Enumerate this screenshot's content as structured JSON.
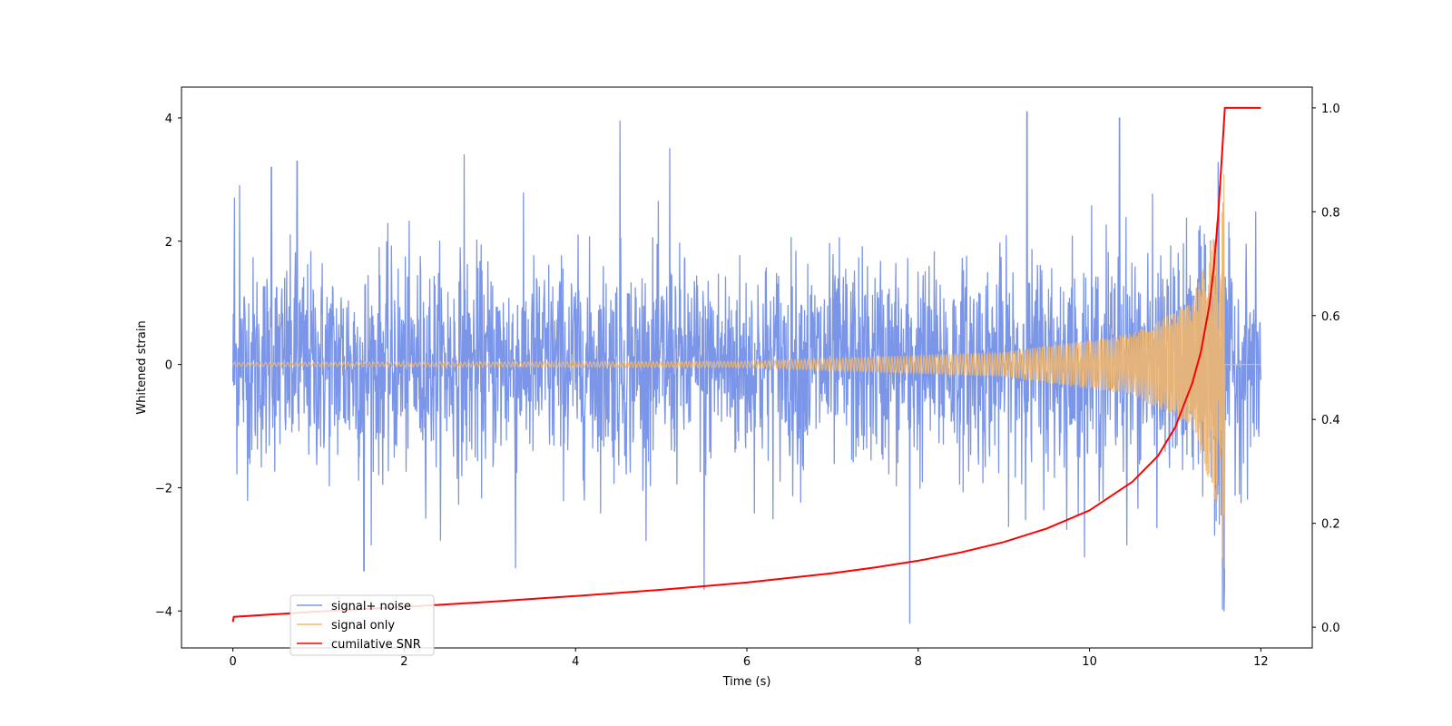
{
  "chart_data": {
    "type": "line",
    "xlabel": "Time (s)",
    "ylabel": "Whitened strain",
    "xlim": [
      -0.6,
      12.6
    ],
    "ylim": [
      -4.6,
      4.5
    ],
    "y2lim": [
      -0.04,
      1.04
    ],
    "xticks": [
      0,
      2,
      4,
      6,
      8,
      10,
      12
    ],
    "yticks": [
      -4,
      -2,
      0,
      2,
      4
    ],
    "y2ticks": [
      0.0,
      0.2,
      0.4,
      0.6,
      0.8,
      1.0
    ],
    "xtick_labels": [
      "0",
      "2",
      "4",
      "6",
      "8",
      "10",
      "12"
    ],
    "ytick_labels": [
      "−4",
      "−2",
      "0",
      "2",
      "4"
    ],
    "y2tick_labels": [
      "0.0",
      "0.2",
      "0.4",
      "0.6",
      "0.8",
      "1.0"
    ],
    "legend_position": "lower-left",
    "grid": false,
    "series": [
      {
        "name": "signal+ noise",
        "color": "#7b96e8",
        "axis": "left",
        "description_values": {
          "x_range": [
            0,
            12
          ],
          "typical_envelope": [
            -2.5,
            2.5
          ],
          "peaks": [
            [
              0.02,
              2.7
            ],
            [
              0.08,
              2.9
            ],
            [
              0.45,
              3.2
            ],
            [
              0.75,
              3.3
            ],
            [
              2.7,
              3.4
            ],
            [
              4.52,
              3.95
            ],
            [
              5.1,
              3.5
            ],
            [
              7.9,
              -4.2
            ],
            [
              9.27,
              4.1
            ],
            [
              10.35,
              4.0
            ],
            [
              11.57,
              -4.0
            ],
            [
              5.5,
              -3.65
            ],
            [
              1.53,
              -3.35
            ],
            [
              3.3,
              -3.3
            ]
          ]
        }
      },
      {
        "name": "signal only",
        "color": "#f5b86a",
        "axis": "left",
        "description_values": {
          "x_range": [
            0,
            12
          ],
          "chirp_end": 11.58,
          "amplitude_at": [
            [
              0,
              0.03
            ],
            [
              6,
              0.05
            ],
            [
              9,
              0.2
            ],
            [
              10.5,
              0.5
            ],
            [
              11.2,
              1.0
            ],
            [
              11.5,
              2.4
            ],
            [
              11.57,
              3.4
            ]
          ]
        }
      },
      {
        "name": "cumilative SNR",
        "color": "#ff0000",
        "axis": "right",
        "x": [
          0,
          0.01,
          1,
          2,
          3,
          4,
          5,
          6,
          7,
          7.5,
          8,
          8.5,
          9,
          9.5,
          10,
          10.5,
          10.8,
          11.0,
          11.2,
          11.3,
          11.4,
          11.45,
          11.5,
          11.55,
          11.58,
          12
        ],
        "values": [
          0.01,
          0.02,
          0.03,
          0.039,
          0.049,
          0.06,
          0.072,
          0.086,
          0.104,
          0.115,
          0.128,
          0.144,
          0.164,
          0.19,
          0.225,
          0.28,
          0.33,
          0.385,
          0.47,
          0.53,
          0.62,
          0.69,
          0.79,
          0.92,
          1.0,
          1.0
        ]
      }
    ]
  }
}
